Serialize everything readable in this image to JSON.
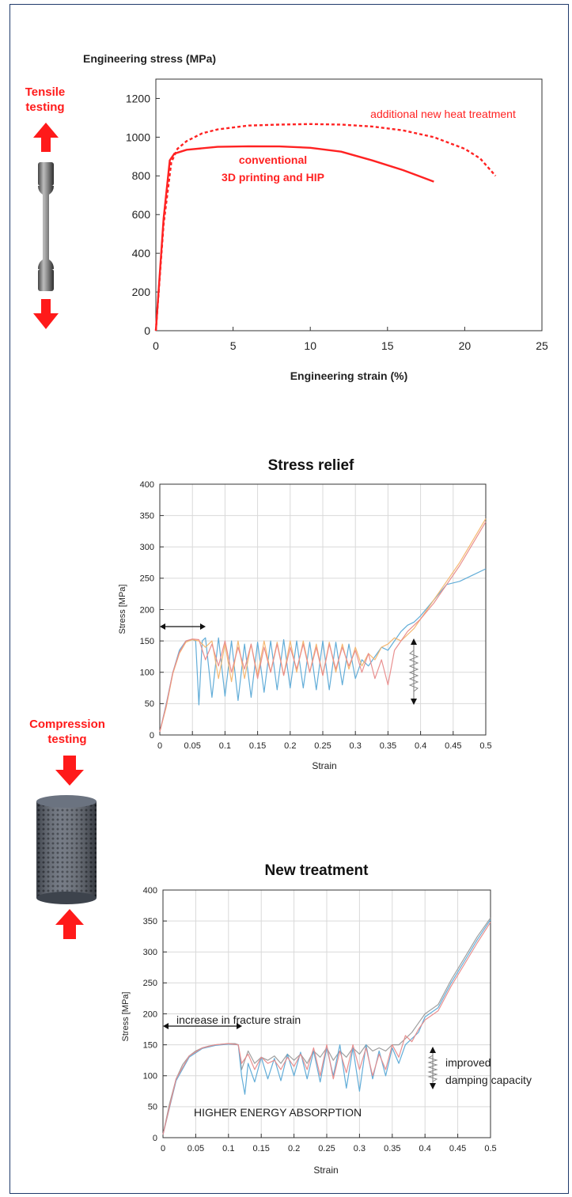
{
  "colors": {
    "tensile_curve": "#ff2222",
    "arrow_red": "#ff1a1a",
    "border": "#1f3a6b",
    "grid": "#d9d9d9",
    "series_blue": "#5aa9d6",
    "series_orange": "#f4b46a",
    "series_pink": "#e88a8a",
    "series_gray": "#9a9a9a"
  },
  "icons": {
    "tensile_up": "red-up-arrow-icon",
    "tensile_down": "red-down-arrow-icon",
    "tensile_specimen": "dogbone-specimen-icon",
    "compression_down": "red-down-arrow-icon",
    "compression_up": "red-up-arrow-icon",
    "compression_specimen": "lattice-cylinder-icon"
  },
  "side_labels": {
    "tensile": "Tensile testing",
    "compression": "Compression testing"
  },
  "chart_data": [
    {
      "type": "line",
      "ylabel": "Engineering stress (MPa)",
      "xlabel": "Engineering strain (%)",
      "xlim": [
        0,
        25
      ],
      "ylim": [
        0,
        1300
      ],
      "x_ticks": [
        "0",
        "5",
        "10",
        "15",
        "20",
        "25"
      ],
      "y_ticks": [
        "0",
        "200",
        "400",
        "600",
        "800",
        "1000",
        "1200"
      ],
      "grid": false,
      "annotations": [
        {
          "text": "additional new heat treatment"
        },
        {
          "text": "conventional"
        },
        {
          "text": "3D printing and HIP"
        }
      ],
      "series": [
        {
          "style": "solid",
          "x": [
            0,
            0.5,
            0.9,
            1.2,
            2,
            4,
            6,
            8,
            10,
            12,
            14,
            16,
            17,
            18
          ],
          "y": [
            0,
            580,
            880,
            915,
            935,
            950,
            953,
            952,
            945,
            925,
            880,
            830,
            800,
            770
          ]
        },
        {
          "style": "dashed",
          "x": [
            0,
            0.5,
            1.0,
            1.4,
            2,
            3,
            4,
            6,
            8,
            10,
            12,
            14,
            16,
            18,
            20,
            21,
            22
          ],
          "y": [
            0,
            550,
            870,
            940,
            980,
            1020,
            1040,
            1060,
            1065,
            1068,
            1065,
            1055,
            1035,
            1000,
            940,
            890,
            800
          ]
        }
      ]
    },
    {
      "type": "line",
      "title": "Stress relief",
      "xlabel": "Strain",
      "ylabel": "Stress [MPa]",
      "xlim": [
        0,
        0.5
      ],
      "ylim": [
        0,
        400
      ],
      "x_ticks": [
        "0",
        "0.05",
        "0.1",
        "0.15",
        "0.2",
        "0.25",
        "0.3",
        "0.35",
        "0.4",
        "0.45",
        "0.5"
      ],
      "y_ticks": [
        "0",
        "50",
        "100",
        "150",
        "200",
        "250",
        "300",
        "350",
        "400"
      ],
      "grid": true,
      "series": [
        {
          "color_key": "series_blue",
          "x": [
            0,
            0.01,
            0.02,
            0.03,
            0.04,
            0.05,
            0.055,
            0.06,
            0.065,
            0.07,
            0.08,
            0.09,
            0.1,
            0.11,
            0.12,
            0.13,
            0.14,
            0.15,
            0.16,
            0.17,
            0.18,
            0.19,
            0.2,
            0.21,
            0.22,
            0.23,
            0.24,
            0.25,
            0.26,
            0.27,
            0.28,
            0.29,
            0.3,
            0.31,
            0.32,
            0.33,
            0.34,
            0.35,
            0.36,
            0.37,
            0.38,
            0.39,
            0.4,
            0.42,
            0.44,
            0.46,
            0.48,
            0.5
          ],
          "y": [
            5,
            50,
            100,
            135,
            150,
            152,
            150,
            48,
            150,
            155,
            60,
            155,
            62,
            150,
            55,
            145,
            60,
            148,
            68,
            150,
            72,
            152,
            75,
            150,
            75,
            148,
            72,
            150,
            72,
            148,
            80,
            145,
            90,
            120,
            110,
            125,
            140,
            135,
            150,
            165,
            175,
            180,
            190,
            215,
            240,
            245,
            255,
            265
          ]
        },
        {
          "color_key": "series_orange",
          "x": [
            0,
            0.01,
            0.02,
            0.03,
            0.04,
            0.05,
            0.06,
            0.07,
            0.08,
            0.09,
            0.1,
            0.11,
            0.12,
            0.13,
            0.14,
            0.15,
            0.16,
            0.17,
            0.18,
            0.19,
            0.2,
            0.21,
            0.22,
            0.23,
            0.24,
            0.25,
            0.26,
            0.27,
            0.28,
            0.29,
            0.3,
            0.31,
            0.32,
            0.33,
            0.34,
            0.35,
            0.36,
            0.37,
            0.38,
            0.39,
            0.4,
            0.42,
            0.44,
            0.46,
            0.48,
            0.5
          ],
          "y": [
            5,
            45,
            98,
            130,
            148,
            152,
            150,
            140,
            150,
            90,
            145,
            85,
            150,
            90,
            145,
            95,
            150,
            100,
            148,
            95,
            150,
            100,
            150,
            100,
            145,
            95,
            148,
            100,
            145,
            105,
            140,
            110,
            130,
            120,
            140,
            145,
            155,
            150,
            160,
            170,
            185,
            215,
            245,
            275,
            310,
            345
          ]
        },
        {
          "color_key": "series_pink",
          "x": [
            0,
            0.01,
            0.02,
            0.03,
            0.04,
            0.05,
            0.06,
            0.07,
            0.08,
            0.09,
            0.1,
            0.11,
            0.12,
            0.13,
            0.14,
            0.15,
            0.16,
            0.17,
            0.18,
            0.19,
            0.2,
            0.21,
            0.22,
            0.23,
            0.24,
            0.25,
            0.26,
            0.27,
            0.28,
            0.29,
            0.3,
            0.31,
            0.32,
            0.33,
            0.34,
            0.35,
            0.36,
            0.37,
            0.38,
            0.39,
            0.4,
            0.42,
            0.44,
            0.46,
            0.48,
            0.5
          ],
          "y": [
            5,
            48,
            100,
            132,
            150,
            153,
            152,
            120,
            145,
            110,
            150,
            100,
            140,
            105,
            145,
            90,
            140,
            100,
            145,
            95,
            140,
            105,
            145,
            100,
            140,
            95,
            145,
            105,
            140,
            110,
            135,
            100,
            130,
            90,
            120,
            80,
            135,
            150,
            165,
            175,
            185,
            210,
            240,
            270,
            305,
            340
          ]
        }
      ],
      "annotations": []
    },
    {
      "type": "line",
      "title": "New treatment",
      "xlabel": "Strain",
      "ylabel": "Stress [MPa]",
      "xlim": [
        0,
        0.5
      ],
      "ylim": [
        0,
        400
      ],
      "x_ticks": [
        "0",
        "0.05",
        "0.1",
        "0.15",
        "0.2",
        "0.25",
        "0.3",
        "0.35",
        "0.4",
        "0.45",
        "0.5"
      ],
      "y_ticks": [
        "0",
        "50",
        "100",
        "150",
        "200",
        "250",
        "300",
        "350",
        "400"
      ],
      "grid": true,
      "annotations": [
        {
          "text": "increase in fracture strain"
        },
        {
          "text": "HIGHER ENERGY ABSORPTION"
        },
        {
          "text": "improved"
        },
        {
          "text": "damping capacity"
        }
      ],
      "series": [
        {
          "color_key": "series_gray",
          "x": [
            0,
            0.01,
            0.02,
            0.03,
            0.04,
            0.05,
            0.06,
            0.07,
            0.08,
            0.09,
            0.1,
            0.11,
            0.115,
            0.12,
            0.13,
            0.14,
            0.15,
            0.16,
            0.17,
            0.18,
            0.19,
            0.2,
            0.21,
            0.22,
            0.23,
            0.24,
            0.25,
            0.26,
            0.27,
            0.28,
            0.29,
            0.3,
            0.31,
            0.32,
            0.33,
            0.34,
            0.35,
            0.36,
            0.37,
            0.38,
            0.39,
            0.4,
            0.42,
            0.44,
            0.46,
            0.48,
            0.5
          ],
          "y": [
            5,
            55,
            95,
            118,
            132,
            140,
            145,
            148,
            150,
            151,
            152,
            152,
            150,
            110,
            140,
            120,
            130,
            125,
            132,
            120,
            135,
            125,
            135,
            120,
            140,
            130,
            145,
            125,
            140,
            130,
            145,
            135,
            150,
            140,
            145,
            140,
            150,
            150,
            160,
            170,
            185,
            200,
            215,
            255,
            290,
            325,
            355
          ]
        },
        {
          "color_key": "series_blue",
          "x": [
            0,
            0.02,
            0.04,
            0.06,
            0.08,
            0.1,
            0.115,
            0.12,
            0.125,
            0.13,
            0.14,
            0.15,
            0.16,
            0.17,
            0.18,
            0.19,
            0.2,
            0.21,
            0.22,
            0.23,
            0.24,
            0.25,
            0.26,
            0.27,
            0.28,
            0.29,
            0.3,
            0.31,
            0.32,
            0.33,
            0.34,
            0.35,
            0.36,
            0.37,
            0.38,
            0.39,
            0.4,
            0.42,
            0.44,
            0.46,
            0.48,
            0.5
          ],
          "y": [
            5,
            92,
            130,
            144,
            149,
            151,
            150,
            100,
            70,
            120,
            90,
            130,
            95,
            128,
            92,
            135,
            100,
            138,
            95,
            140,
            90,
            145,
            100,
            150,
            80,
            145,
            75,
            150,
            95,
            140,
            100,
            145,
            120,
            150,
            160,
            170,
            195,
            210,
            250,
            285,
            320,
            352
          ]
        },
        {
          "color_key": "series_pink",
          "x": [
            0,
            0.02,
            0.04,
            0.06,
            0.08,
            0.1,
            0.115,
            0.12,
            0.13,
            0.14,
            0.15,
            0.16,
            0.17,
            0.18,
            0.19,
            0.2,
            0.21,
            0.22,
            0.23,
            0.24,
            0.25,
            0.26,
            0.27,
            0.28,
            0.29,
            0.3,
            0.31,
            0.32,
            0.33,
            0.34,
            0.35,
            0.36,
            0.37,
            0.38,
            0.39,
            0.4,
            0.42,
            0.44,
            0.46,
            0.48,
            0.5
          ],
          "y": [
            5,
            95,
            132,
            145,
            150,
            152,
            150,
            120,
            135,
            110,
            130,
            120,
            125,
            110,
            130,
            115,
            135,
            110,
            145,
            100,
            150,
            95,
            140,
            105,
            150,
            110,
            145,
            100,
            135,
            110,
            150,
            130,
            165,
            155,
            175,
            190,
            205,
            245,
            280,
            315,
            348
          ]
        }
      ]
    }
  ]
}
